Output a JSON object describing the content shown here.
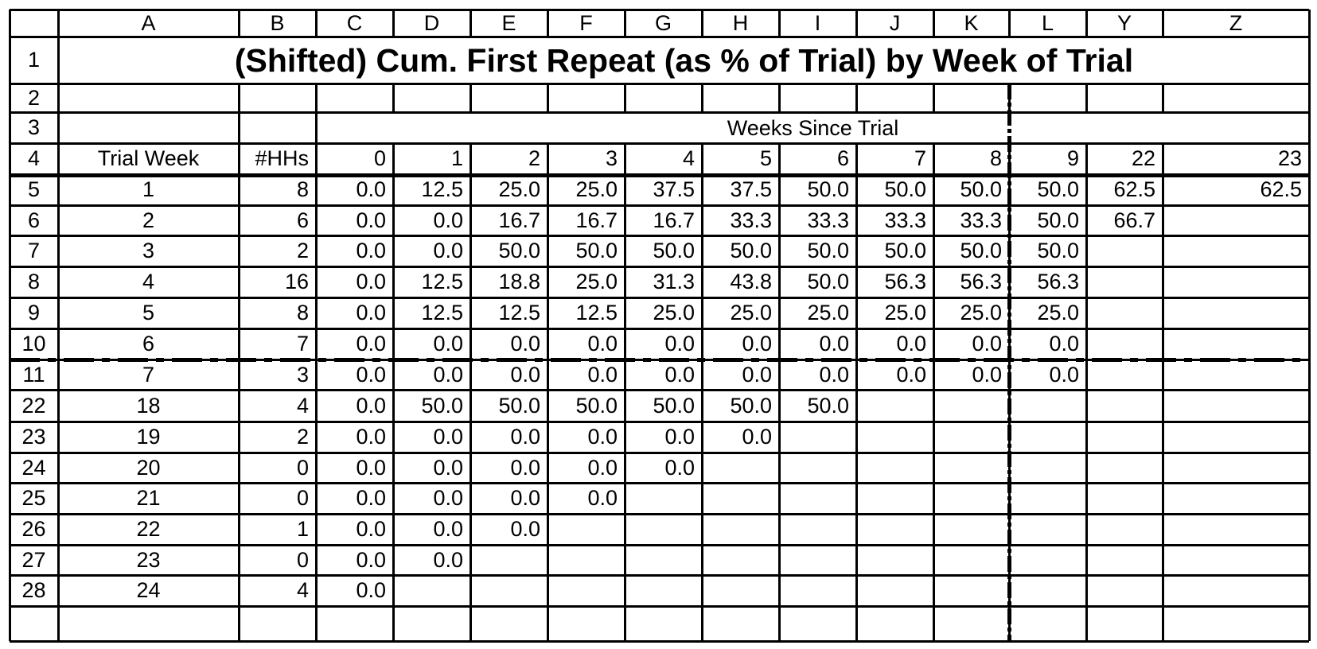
{
  "columns": [
    "A",
    "B",
    "C",
    "D",
    "E",
    "F",
    "G",
    "H",
    "I",
    "J",
    "K",
    "L",
    "Y",
    "Z"
  ],
  "title": "(Shifted) Cum. First Repeat (as % of Trial) by Week of Trial",
  "weeks_since_trial_label": "Weeks Since Trial",
  "rows": [
    {
      "num": "1"
    },
    {
      "num": "2"
    },
    {
      "num": "3"
    },
    {
      "num": "4",
      "cells": [
        "Trial Week",
        "#HHs",
        "0",
        "1",
        "2",
        "3",
        "4",
        "5",
        "6",
        "7",
        "8",
        "9",
        "22",
        "23"
      ]
    },
    {
      "num": "5",
      "cells": [
        "1",
        "8",
        "0.0",
        "12.5",
        "25.0",
        "25.0",
        "37.5",
        "37.5",
        "50.0",
        "50.0",
        "50.0",
        "50.0",
        "62.5",
        "62.5"
      ]
    },
    {
      "num": "6",
      "cells": [
        "2",
        "6",
        "0.0",
        "0.0",
        "16.7",
        "16.7",
        "16.7",
        "33.3",
        "33.3",
        "33.3",
        "33.3",
        "50.0",
        "66.7",
        ""
      ]
    },
    {
      "num": "7",
      "cells": [
        "3",
        "2",
        "0.0",
        "0.0",
        "50.0",
        "50.0",
        "50.0",
        "50.0",
        "50.0",
        "50.0",
        "50.0",
        "50.0",
        "",
        ""
      ]
    },
    {
      "num": "8",
      "cells": [
        "4",
        "16",
        "0.0",
        "12.5",
        "18.8",
        "25.0",
        "31.3",
        "43.8",
        "50.0",
        "56.3",
        "56.3",
        "56.3",
        "",
        ""
      ]
    },
    {
      "num": "9",
      "cells": [
        "5",
        "8",
        "0.0",
        "12.5",
        "12.5",
        "12.5",
        "25.0",
        "25.0",
        "25.0",
        "25.0",
        "25.0",
        "25.0",
        "",
        ""
      ]
    },
    {
      "num": "10",
      "cells": [
        "6",
        "7",
        "0.0",
        "0.0",
        "0.0",
        "0.0",
        "0.0",
        "0.0",
        "0.0",
        "0.0",
        "0.0",
        "0.0",
        "",
        ""
      ]
    },
    {
      "num": "11",
      "cells": [
        "7",
        "3",
        "0.0",
        "0.0",
        "0.0",
        "0.0",
        "0.0",
        "0.0",
        "0.0",
        "0.0",
        "0.0",
        "0.0",
        "",
        ""
      ]
    },
    {
      "num": "22",
      "cells": [
        "18",
        "4",
        "0.0",
        "50.0",
        "50.0",
        "50.0",
        "50.0",
        "50.0",
        "50.0",
        "",
        "",
        "",
        "",
        ""
      ]
    },
    {
      "num": "23",
      "cells": [
        "19",
        "2",
        "0.0",
        "0.0",
        "0.0",
        "0.0",
        "0.0",
        "0.0",
        "",
        "",
        "",
        "",
        "",
        ""
      ]
    },
    {
      "num": "24",
      "cells": [
        "20",
        "0",
        "0.0",
        "0.0",
        "0.0",
        "0.0",
        "0.0",
        "",
        "",
        "",
        "",
        "",
        "",
        ""
      ]
    },
    {
      "num": "25",
      "cells": [
        "21",
        "0",
        "0.0",
        "0.0",
        "0.0",
        "0.0",
        "",
        "",
        "",
        "",
        "",
        "",
        "",
        ""
      ]
    },
    {
      "num": "26",
      "cells": [
        "22",
        "1",
        "0.0",
        "0.0",
        "0.0",
        "",
        "",
        "",
        "",
        "",
        "",
        "",
        "",
        ""
      ]
    },
    {
      "num": "27",
      "cells": [
        "23",
        "0",
        "0.0",
        "0.0",
        "",
        "",
        "",
        "",
        "",
        "",
        "",
        "",
        "",
        ""
      ]
    },
    {
      "num": "28",
      "cells": [
        "24",
        "4",
        "0.0",
        "",
        "",
        "",
        "",
        "",
        "",
        "",
        "",
        "",
        "",
        ""
      ]
    }
  ]
}
